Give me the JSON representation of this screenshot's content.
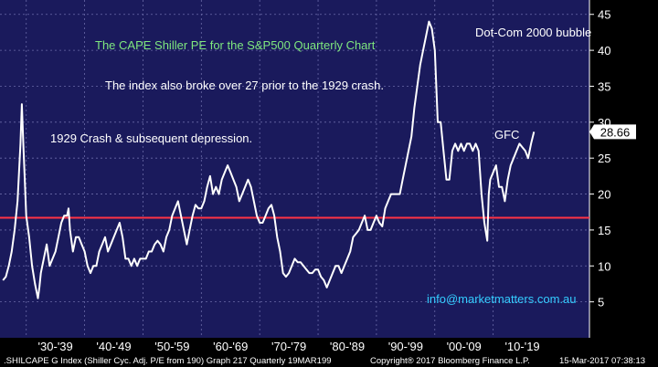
{
  "chart_data": {
    "type": "line",
    "title": "The CAPE Shiller PE for the S&P500 Quarterly Chart",
    "ylim": [
      0,
      47
    ],
    "xlim": [
      1925.5,
      2026.5
    ],
    "y_ticks": [
      5,
      10,
      15,
      20,
      25,
      30,
      35,
      40,
      45
    ],
    "x_labels": [
      {
        "label": "'30-'39",
        "x": 1935
      },
      {
        "label": "'40-'49",
        "x": 1945
      },
      {
        "label": "'50-'59",
        "x": 1955
      },
      {
        "label": "'60-'69",
        "x": 1965
      },
      {
        "label": "'70-'79",
        "x": 1975
      },
      {
        "label": "'80-'89",
        "x": 1985
      },
      {
        "label": "'90-'99",
        "x": 1995
      },
      {
        "label": "'00-'09",
        "x": 2005
      },
      {
        "label": "'10-'19",
        "x": 2015
      }
    ],
    "reference_line": {
      "value": 16.7,
      "color": "#ff3344"
    },
    "last_value": {
      "value": 28.66,
      "label": "28.66"
    },
    "line_color": "#ffffff",
    "background_color": "#1a1a5c",
    "series": [
      {
        "x": [
          1926,
          1926.5,
          1927,
          1927.5,
          1928,
          1928.5,
          1929,
          1929.25,
          1929.5,
          1929.75,
          1930,
          1930.5,
          1931,
          1931.5,
          1932,
          1932.25,
          1932.5,
          1933,
          1933.5,
          1934,
          1934.5,
          1935,
          1935.5,
          1936,
          1936.5,
          1937,
          1937.25,
          1937.5,
          1938,
          1938.5,
          1939,
          1939.5,
          1940,
          1940.5,
          1941,
          1941.5,
          1942,
          1942.5,
          1943,
          1943.5,
          1944,
          1944.5,
          1945,
          1945.5,
          1946,
          1946.5,
          1947,
          1947.5,
          1948,
          1948.5,
          1949,
          1949.5,
          1950,
          1950.5,
          1951,
          1951.5,
          1952,
          1952.5,
          1953,
          1953.5,
          1954,
          1954.5,
          1955,
          1955.5,
          1956,
          1956.5,
          1957,
          1957.5,
          1958,
          1958.5,
          1959,
          1959.5,
          1960,
          1960.5,
          1961,
          1961.5,
          1962,
          1962.5,
          1963,
          1963.5,
          1964,
          1964.5,
          1965,
          1965.5,
          1966,
          1966.5,
          1967,
          1967.5,
          1968,
          1968.5,
          1969,
          1969.5,
          1970,
          1970.5,
          1971,
          1971.5,
          1972,
          1972.5,
          1973,
          1973.5,
          1974,
          1974.5,
          1975,
          1975.5,
          1976,
          1976.5,
          1977,
          1977.5,
          1978,
          1978.5,
          1979,
          1979.5,
          1980,
          1980.5,
          1981,
          1981.5,
          1982,
          1982.5,
          1983,
          1983.5,
          1984,
          1984.5,
          1985,
          1985.5,
          1986,
          1986.5,
          1987,
          1987.5,
          1988,
          1988.5,
          1989,
          1989.5,
          1990,
          1990.5,
          1991,
          1991.5,
          1992,
          1992.5,
          1993,
          1993.5,
          1994,
          1994.5,
          1995,
          1995.5,
          1996,
          1996.5,
          1997,
          1997.5,
          1998,
          1998.5,
          1999,
          1999.5,
          2000,
          2000.25,
          2000.5,
          2001,
          2001.5,
          2002,
          2002.5,
          2003,
          2003.5,
          2004,
          2004.5,
          2005,
          2005.5,
          2006,
          2006.5,
          2007,
          2007.5,
          2008,
          2008.5,
          2009,
          2009.25,
          2009.5,
          2010,
          2010.5,
          2011,
          2011.5,
          2012,
          2012.5,
          2013,
          2013.5,
          2014,
          2014.5,
          2015,
          2015.5,
          2016,
          2016.5,
          2017
        ],
        "y": [
          8,
          8.5,
          10,
          12,
          15,
          19,
          27,
          32.5,
          27,
          22,
          17,
          14,
          10,
          7.5,
          5.5,
          7,
          9,
          11,
          13,
          10,
          11,
          12,
          14,
          16,
          17,
          17,
          18,
          15,
          12,
          14,
          14,
          13,
          12,
          10,
          9,
          10,
          10,
          12,
          13,
          14,
          12,
          13,
          14,
          15,
          16,
          14,
          11,
          11,
          10,
          11,
          10,
          11,
          11,
          11,
          12,
          12,
          13,
          13.5,
          13,
          12,
          14,
          15,
          17,
          18,
          19,
          17,
          15,
          13,
          15,
          17,
          18.5,
          18,
          18,
          19,
          21,
          22.5,
          20,
          21,
          20,
          22,
          23,
          24,
          23,
          22,
          21,
          19,
          20,
          21,
          22,
          21,
          19,
          17,
          16,
          16,
          17,
          18,
          18.5,
          17,
          14,
          12,
          9,
          8.5,
          9,
          10,
          11,
          10.5,
          10.5,
          10,
          9.5,
          9,
          9,
          9.5,
          9.5,
          8.5,
          8,
          7,
          8,
          9,
          10,
          10,
          9,
          10,
          11,
          12,
          14,
          14.5,
          15,
          16,
          17,
          15,
          15,
          16,
          17,
          16,
          15.5,
          18,
          19,
          20,
          20,
          20,
          20,
          22,
          24,
          26,
          28,
          32,
          35,
          38,
          40,
          42,
          44,
          43,
          40,
          35,
          30,
          30,
          26,
          22,
          22,
          26,
          27,
          26,
          27,
          26,
          27,
          27,
          26,
          27,
          26,
          20,
          16,
          13.5,
          20,
          22,
          23,
          24,
          21,
          21,
          19,
          22,
          24,
          25,
          26,
          27,
          26.5,
          26,
          25,
          27,
          28.66
        ]
      }
    ],
    "annotations": [
      {
        "text": "The CAPE Shiller PE for the S&P500 Quarterly Chart",
        "color": "#7fe87f"
      },
      {
        "text": "The index also broke over 27 prior to the 1929 crash.",
        "color": "#ffffff"
      },
      {
        "text": "1929 Crash & subsequent depression.",
        "color": "#ffffff"
      },
      {
        "text": "Dot-Com 2000 bubble",
        "color": "#ffffff"
      },
      {
        "text": "GFC",
        "color": "#ffffff"
      },
      {
        "text": "info@marketmatters.com.au",
        "color": "#33ccff"
      }
    ]
  },
  "footer": {
    "left": ".SHILCAPE G Index (Shiller Cyc. Adj. P/E from 190) Graph 217  Quarterly 19MAR199",
    "center": "Copyright® 2017 Bloomberg Finance L.P.",
    "right": "15-Mar-2017 07:38:13"
  }
}
